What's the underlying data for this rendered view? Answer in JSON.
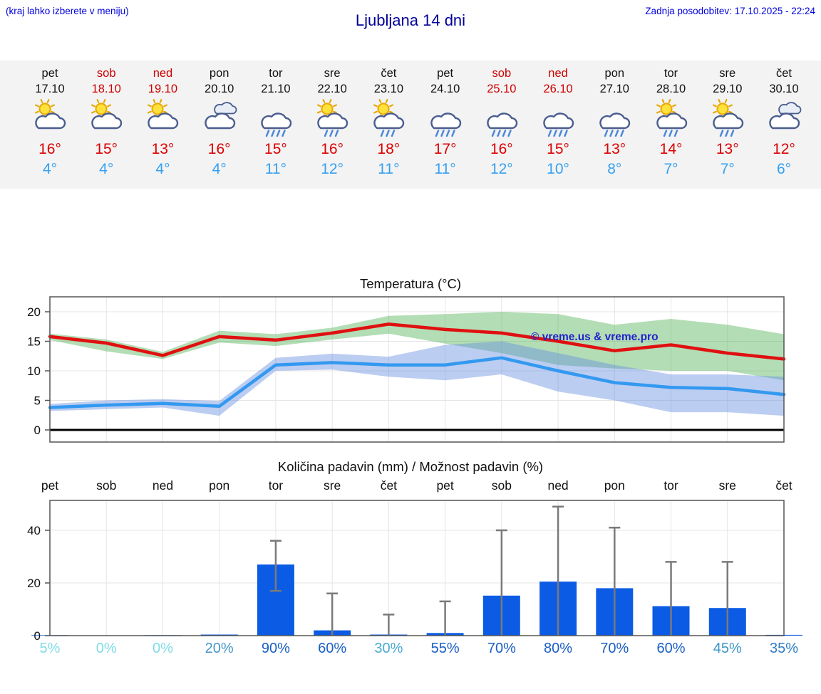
{
  "header": {
    "left_note": "(kraj lahko izberete v meniju)",
    "title": "Ljubljana 14 dni",
    "last_update": "Zadnja posodobitev: 17.10.2025 - 22:24"
  },
  "colors": {
    "weekend_red": "#cc0000",
    "high_temp": "#dd0000",
    "low_temp": "#35a0f0",
    "header_blue": "#0000dd",
    "title_blue": "#000099",
    "bar_blue": "#0b5be4",
    "strip_bg": "#f3f3f3",
    "watermark_blue": "#2222cc"
  },
  "forecast": {
    "days": [
      {
        "name": "pet",
        "date": "17.10",
        "weekend": false,
        "icon": "partly-sunny",
        "high": "16°",
        "low": "4°"
      },
      {
        "name": "sob",
        "date": "18.10",
        "weekend": true,
        "icon": "partly-sunny",
        "high": "15°",
        "low": "4°"
      },
      {
        "name": "ned",
        "date": "19.10",
        "weekend": true,
        "icon": "partly-sunny",
        "high": "13°",
        "low": "4°"
      },
      {
        "name": "pon",
        "date": "20.10",
        "weekend": false,
        "icon": "cloudy",
        "high": "16°",
        "low": "4°"
      },
      {
        "name": "tor",
        "date": "21.10",
        "weekend": false,
        "icon": "rain",
        "high": "15°",
        "low": "11°"
      },
      {
        "name": "sre",
        "date": "22.10",
        "weekend": false,
        "icon": "sun-rain",
        "high": "16°",
        "low": "12°"
      },
      {
        "name": "čet",
        "date": "23.10",
        "weekend": false,
        "icon": "sun-rain",
        "high": "18°",
        "low": "11°"
      },
      {
        "name": "pet",
        "date": "24.10",
        "weekend": false,
        "icon": "rain",
        "high": "17°",
        "low": "11°"
      },
      {
        "name": "sob",
        "date": "25.10",
        "weekend": true,
        "icon": "rain",
        "high": "16°",
        "low": "12°"
      },
      {
        "name": "ned",
        "date": "26.10",
        "weekend": true,
        "icon": "rain",
        "high": "15°",
        "low": "10°"
      },
      {
        "name": "pon",
        "date": "27.10",
        "weekend": false,
        "icon": "rain",
        "high": "13°",
        "low": "8°"
      },
      {
        "name": "tor",
        "date": "28.10",
        "weekend": false,
        "icon": "sun-rain",
        "high": "14°",
        "low": "7°"
      },
      {
        "name": "sre",
        "date": "29.10",
        "weekend": false,
        "icon": "sun-rain",
        "high": "13°",
        "low": "7°"
      },
      {
        "name": "čet",
        "date": "30.10",
        "weekend": false,
        "icon": "cloudy",
        "high": "12°",
        "low": "6°"
      }
    ]
  },
  "chart_data": [
    {
      "type": "line",
      "title": "Temperatura (°C)",
      "x_labels": [
        "pet 17.10",
        "sob 18.10",
        "ned 19.10",
        "pon 20.10",
        "tor 21.10",
        "sre 22.10",
        "čet 23.10",
        "pet 24.10",
        "sob 25.10",
        "ned 26.10",
        "pon 27.10",
        "tor 28.10",
        "sre 29.10",
        "čet 30.10"
      ],
      "ylim": [
        -2,
        22.5
      ],
      "yticks": [
        0,
        5,
        10,
        15,
        20
      ],
      "grid": true,
      "series": [
        {
          "name": "max",
          "color": "#e01010",
          "values": [
            15.8,
            14.7,
            12.6,
            15.8,
            15.2,
            16.4,
            17.9,
            17,
            16.4,
            15,
            13.4,
            14.4,
            13,
            12
          ]
        },
        {
          "name": "min",
          "color": "#3399f0",
          "values": [
            3.8,
            4.2,
            4.5,
            4,
            11,
            11.4,
            11,
            11,
            12.2,
            10,
            8,
            7.2,
            7,
            6
          ]
        }
      ],
      "bands": [
        {
          "name": "max-range",
          "color": "rgba(86,180,92,0.45)",
          "upper": [
            16.3,
            15.3,
            13.2,
            16.8,
            16.2,
            17.3,
            19.3,
            19.6,
            20,
            19.6,
            17.8,
            18.8,
            17.8,
            16.2
          ],
          "lower": [
            15.2,
            13.3,
            12,
            14.8,
            14.2,
            15.3,
            16.3,
            14.6,
            13,
            11,
            10.4,
            10,
            10,
            8.4
          ]
        },
        {
          "name": "min-range",
          "color": "rgba(105,145,225,0.45)",
          "upper": [
            4.4,
            5,
            5.2,
            4.9,
            12.2,
            12.9,
            12.4,
            14.4,
            15,
            13,
            11,
            9.4,
            9.4,
            9
          ],
          "lower": [
            3.2,
            3.5,
            3.8,
            2.4,
            10,
            10.2,
            9,
            8.4,
            9.4,
            6.5,
            5,
            3,
            3,
            2.4
          ]
        }
      ],
      "watermark": "© vreme.us & vreme.pro"
    },
    {
      "type": "bar",
      "title": "Količina padavin (mm) / Možnost padavin (%)",
      "categories": [
        "pet",
        "sob",
        "ned",
        "pon",
        "tor",
        "sre",
        "čet",
        "pet",
        "sob",
        "ned",
        "pon",
        "tor",
        "sre",
        "čet"
      ],
      "values": [
        0.2,
        0,
        0.2,
        0.4,
        27,
        2,
        0.4,
        1,
        15.2,
        20.5,
        18,
        11.2,
        10.5,
        0.3
      ],
      "whisker_low": [
        null,
        null,
        null,
        null,
        17,
        null,
        null,
        null,
        null,
        null,
        null,
        null,
        null,
        null
      ],
      "whisker_high": [
        null,
        null,
        null,
        null,
        36,
        16,
        8,
        13,
        40,
        49,
        41,
        28,
        28,
        null
      ],
      "probabilities": [
        "5%",
        "0%",
        "0%",
        "20%",
        "90%",
        "60%",
        "30%",
        "55%",
        "70%",
        "80%",
        "70%",
        "60%",
        "45%",
        "35%"
      ],
      "prob_colors": [
        "#7fdde8",
        "#7fdde8",
        "#7fdde8",
        "#4596c8",
        "#1a5fc4",
        "#1a5fc4",
        "#49aad2",
        "#1a5fc4",
        "#1a5fc4",
        "#1a5fc4",
        "#1a5fc4",
        "#1a5fc4",
        "#3c96c8",
        "#2f7ec4"
      ],
      "ylim": [
        0,
        51
      ],
      "yticks": [
        0,
        20,
        40
      ],
      "grid": true
    }
  ]
}
